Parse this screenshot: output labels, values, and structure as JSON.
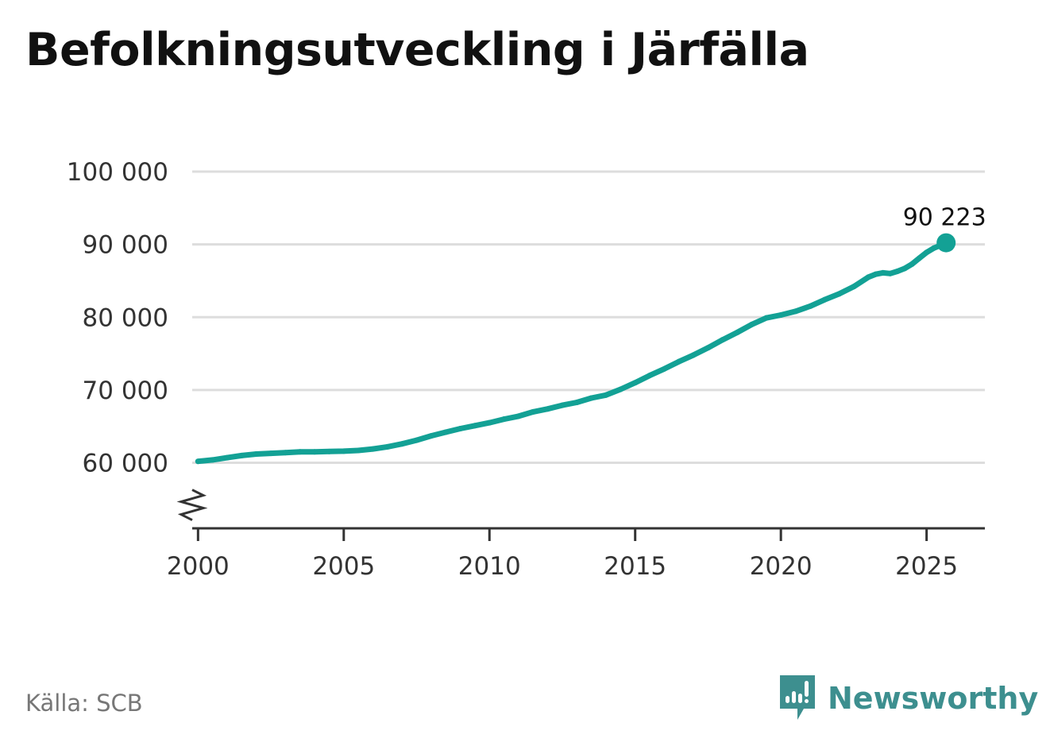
{
  "header": {
    "title": "Befolkningsutveckling i Järfälla"
  },
  "footer": {
    "source": "Källa: SCB",
    "brand": "Newsworthy"
  },
  "colors": {
    "line": "#13a195",
    "grid": "#dddddd",
    "axis": "#333333",
    "brand": "#3d8f8f"
  },
  "chart_data": {
    "type": "line",
    "title": "Befolkningsutveckling i Järfälla",
    "xlabel": "",
    "ylabel": "",
    "xlim": [
      1999.8,
      2027
    ],
    "ylim": [
      51000,
      100000
    ],
    "y_axis_break": true,
    "grid": "horizontal",
    "x_ticks": [
      2000,
      2005,
      2010,
      2015,
      2020,
      2025
    ],
    "x_tick_labels": [
      "2000",
      "2005",
      "2010",
      "2015",
      "2020",
      "2025"
    ],
    "y_ticks": [
      60000,
      70000,
      80000,
      90000,
      100000
    ],
    "y_tick_labels": [
      "60 000",
      "70 000",
      "80 000",
      "90 000",
      "100 000"
    ],
    "series": [
      {
        "x": [
          2000.0,
          2000.5,
          2001.0,
          2001.5,
          2002.0,
          2002.5,
          2003.0,
          2003.5,
          2004.0,
          2004.5,
          2005.0,
          2005.5,
          2006.0,
          2006.5,
          2007.0,
          2007.5,
          2008.0,
          2008.5,
          2009.0,
          2009.5,
          2010.0,
          2010.5,
          2011.0,
          2011.5,
          2012.0,
          2012.5,
          2013.0,
          2013.5,
          2014.0,
          2014.5,
          2015.0,
          2015.5,
          2016.0,
          2016.5,
          2017.0,
          2017.5,
          2018.0,
          2018.5,
          2019.0,
          2019.5,
          2020.0,
          2020.5,
          2021.0,
          2021.5,
          2022.0,
          2022.5,
          2023.0,
          2023.25,
          2023.5,
          2023.75,
          2024.0,
          2024.25,
          2024.5,
          2024.75,
          2025.0,
          2025.25,
          2025.5,
          2025.67
        ],
        "values": [
          60200,
          60400,
          60700,
          61000,
          61200,
          61300,
          61400,
          61500,
          61500,
          61550,
          61600,
          61700,
          61900,
          62200,
          62600,
          63100,
          63700,
          64200,
          64700,
          65100,
          65500,
          66000,
          66400,
          67000,
          67400,
          67900,
          68300,
          68900,
          69300,
          70100,
          71000,
          72000,
          72900,
          73900,
          74800,
          75800,
          76900,
          77900,
          79000,
          79900,
          80300,
          80800,
          81500,
          82400,
          83200,
          84200,
          85500,
          85900,
          86100,
          86000,
          86300,
          86700,
          87300,
          88100,
          88900,
          89500,
          89900,
          90223
        ]
      }
    ],
    "annotations": [
      {
        "x": 2025.67,
        "y": 90223,
        "label": "90 223"
      }
    ]
  }
}
